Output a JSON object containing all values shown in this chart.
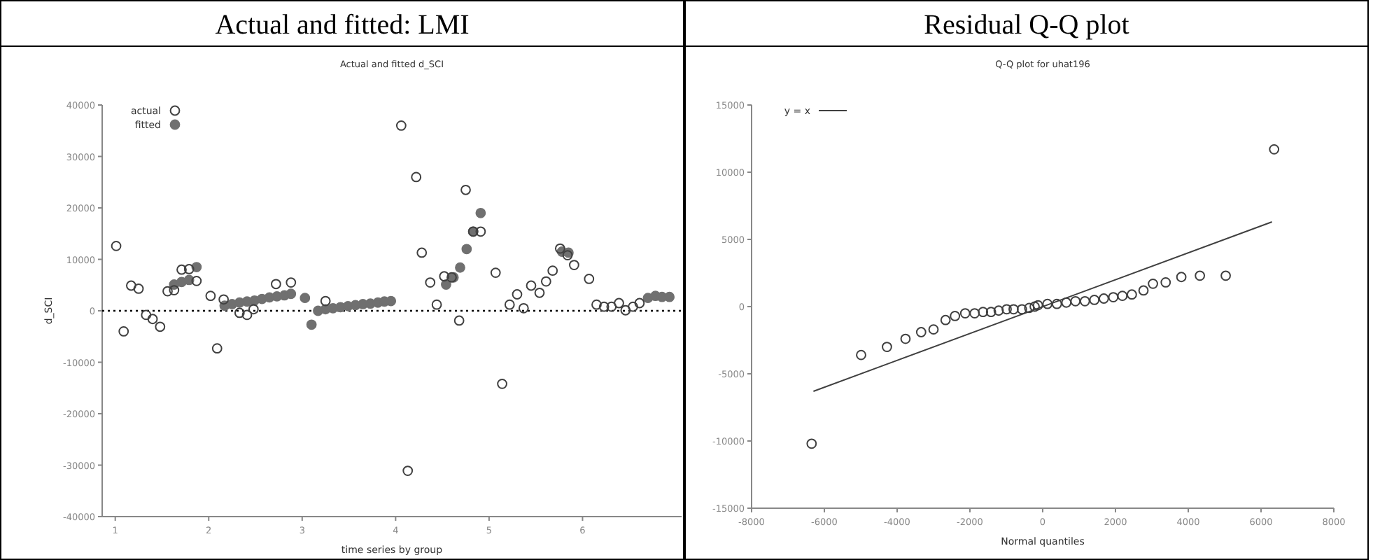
{
  "chart_data": [
    {
      "type": "scatter",
      "title": "Actual and fitted: LMI",
      "subtitle": "Actual and fitted d_SCI",
      "xlabel": "time series by group",
      "ylabel": "d_SCI",
      "xlim": [
        0.86,
        7.06
      ],
      "xticks": [
        1,
        2,
        3,
        4,
        5,
        6
      ],
      "ylim": [
        -40000,
        40000
      ],
      "yticks": [
        -40000,
        -30000,
        -20000,
        -10000,
        0,
        10000,
        20000,
        30000,
        40000
      ],
      "grid": false,
      "legend": "top left",
      "marker": "circle",
      "ref_lines": [
        {
          "axis": "y",
          "value": 0,
          "line_style": "dotted",
          "color": "#000000"
        }
      ],
      "series": [
        {
          "name": "actual",
          "color": "#404040",
          "x": [
            1.01,
            1.09,
            1.17,
            1.25,
            1.33,
            1.4,
            1.48,
            1.56,
            1.63,
            1.71,
            1.79,
            1.87,
            2.02,
            2.09,
            2.16,
            2.33,
            2.41,
            2.48,
            2.72,
            2.88,
            3.25,
            4.06,
            4.13,
            4.22,
            4.28,
            4.37,
            4.44,
            4.52,
            4.6,
            4.68,
            4.75,
            4.83,
            4.91,
            5.07,
            5.14,
            5.22,
            5.3,
            5.37,
            5.45,
            5.54,
            5.61,
            5.68,
            5.76,
            5.84,
            5.91,
            6.07,
            6.15,
            6.23,
            6.31,
            6.39,
            6.46,
            6.54,
            6.61
          ],
          "values": [
            12600,
            -4000,
            4900,
            4300,
            -800,
            -1600,
            -3100,
            3800,
            4000,
            8000,
            8100,
            5800,
            2900,
            -7300,
            2200,
            -400,
            -800,
            300,
            5200,
            5500,
            1900,
            36000,
            -31100,
            26000,
            11300,
            5500,
            1200,
            6700,
            6500,
            -1900,
            23500,
            15400,
            15400,
            7400,
            -14200,
            1200,
            3200,
            500,
            4900,
            3500,
            5700,
            7800,
            12100,
            10800,
            8900,
            6200,
            1200,
            800,
            800,
            1500,
            100,
            800,
            1500
          ]
        },
        {
          "name": "fitted",
          "color": "#707070",
          "x": [
            1.63,
            1.71,
            1.79,
            1.87,
            2.17,
            2.25,
            2.33,
            2.41,
            2.49,
            2.57,
            2.65,
            2.73,
            2.81,
            2.88,
            3.03,
            3.1,
            3.17,
            3.25,
            3.33,
            3.41,
            3.49,
            3.57,
            3.65,
            3.73,
            3.81,
            3.88,
            3.95,
            4.54,
            4.62,
            4.69,
            4.76,
            4.83,
            4.91,
            5.78,
            5.85,
            6.7,
            6.78,
            6.85,
            6.93
          ],
          "values": [
            5100,
            5600,
            6000,
            8500,
            1000,
            1300,
            1600,
            1800,
            2000,
            2300,
            2600,
            2800,
            3000,
            3300,
            2500,
            -2700,
            0,
            300,
            500,
            700,
            900,
            1100,
            1300,
            1400,
            1600,
            1800,
            1900,
            5100,
            6500,
            8400,
            12000,
            15400,
            19000,
            11500,
            11300,
            2500,
            2900,
            2700,
            2700
          ]
        }
      ]
    },
    {
      "type": "scatter",
      "title": "Residual Q-Q plot",
      "subtitle": "Q-Q plot for uhat196",
      "xlabel": "Normal quantiles",
      "xlim": [
        -8000,
        8000
      ],
      "xticks": [
        -8000,
        -6000,
        -4000,
        -2000,
        0,
        2000,
        4000,
        6000,
        8000
      ],
      "ylim": [
        -15000,
        15000
      ],
      "yticks": [
        -15000,
        -10000,
        -5000,
        0,
        5000,
        10000,
        15000
      ],
      "grid": false,
      "legend": "top left",
      "marker": "circle",
      "series": [
        {
          "color": "#404040",
          "x": [
            -6350,
            -4990,
            -4280,
            -3770,
            -3340,
            -3000,
            -2670,
            -2410,
            -2130,
            -1870,
            -1640,
            -1420,
            -1210,
            -990,
            -800,
            -570,
            -370,
            -220,
            -130,
            130,
            390,
            650,
            900,
            1160,
            1420,
            1680,
            1940,
            2190,
            2450,
            2770,
            3030,
            3380,
            3810,
            4320,
            5030,
            6360
          ],
          "values": [
            -10200,
            -3600,
            -3000,
            -2400,
            -1900,
            -1700,
            -1000,
            -700,
            -500,
            -500,
            -400,
            -400,
            -300,
            -200,
            -200,
            -200,
            -100,
            0,
            100,
            200,
            200,
            300,
            400,
            400,
            500,
            600,
            700,
            800,
            900,
            1200,
            1700,
            1800,
            2200,
            2300,
            2300,
            11700
          ]
        },
        {
          "type": "line",
          "name": "y = x",
          "color": "#404040",
          "marker": "none",
          "x": [
            -6300,
            6300
          ],
          "values": [
            -6300,
            6300
          ]
        }
      ]
    }
  ]
}
